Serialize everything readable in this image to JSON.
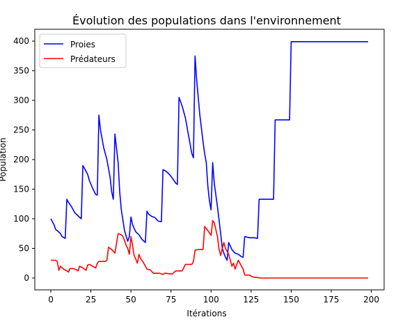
{
  "chart_data": {
    "type": "line",
    "title": "Évolution des populations dans l'environnement",
    "xlabel": "Itérations",
    "ylabel": "Population",
    "xlim": [
      -10,
      208
    ],
    "ylim": [
      -20,
      420
    ],
    "xticks": [
      0,
      25,
      50,
      75,
      100,
      125,
      150,
      175,
      200
    ],
    "yticks": [
      0,
      50,
      100,
      150,
      200,
      250,
      300,
      350,
      400
    ],
    "grid": false,
    "legend_position": "top-left",
    "series": [
      {
        "name": "Proies",
        "color": "#0000ff",
        "x": [
          0,
          2,
          3,
          4,
          6,
          7,
          9,
          10,
          11,
          12,
          13,
          15,
          17,
          19,
          20,
          22,
          23,
          24,
          26,
          28,
          29,
          30,
          31,
          33,
          35,
          37,
          38,
          39,
          40,
          42,
          43,
          44,
          46,
          48,
          49,
          50,
          51,
          53,
          55,
          57,
          59,
          60,
          61,
          63,
          65,
          67,
          69,
          70,
          72,
          74,
          76,
          78,
          79,
          80,
          82,
          84,
          86,
          88,
          89,
          90,
          91,
          93,
          95,
          96,
          97,
          98,
          99,
          100,
          101,
          102,
          104,
          106,
          107,
          108,
          109,
          110,
          111,
          113,
          115,
          117,
          118,
          119,
          120,
          121,
          124,
          127,
          129,
          130,
          132,
          134,
          136,
          138,
          139,
          140,
          142,
          144,
          146,
          148,
          149,
          150,
          155,
          160,
          165,
          170,
          175,
          180,
          185,
          190,
          195,
          198
        ],
        "y": [
          100,
          90,
          82,
          80,
          75,
          70,
          67,
          133,
          128,
          124,
          120,
          110,
          105,
          100,
          190,
          180,
          175,
          165,
          152,
          141,
          140,
          275,
          250,
          220,
          200,
          170,
          145,
          133,
          243,
          195,
          145,
          115,
          80,
          62,
          70,
          103,
          90,
          78,
          73,
          65,
          60,
          113,
          108,
          104,
          102,
          96,
          95,
          183,
          180,
          175,
          168,
          160,
          158,
          305,
          290,
          270,
          240,
          210,
          203,
          375,
          335,
          275,
          230,
          210,
          195,
          155,
          130,
          115,
          195,
          160,
          120,
          75,
          50,
          42,
          35,
          30,
          60,
          48,
          42,
          40,
          38,
          36,
          35,
          70,
          68,
          68,
          67,
          133,
          133,
          133,
          133,
          133,
          133,
          267,
          267,
          267,
          267,
          267,
          267,
          399,
          399,
          399,
          399,
          399,
          399,
          399,
          399,
          399,
          399,
          399
        ]
      },
      {
        "name": "Prédateurs",
        "color": "#ff0000",
        "x": [
          0,
          2,
          3,
          4,
          5,
          6,
          8,
          10,
          11,
          12,
          14,
          16,
          17,
          18,
          20,
          21,
          22,
          23,
          24,
          26,
          28,
          29,
          30,
          32,
          34,
          35,
          36,
          38,
          39,
          40,
          42,
          44,
          45,
          46,
          47,
          48,
          49,
          50,
          51,
          52,
          53,
          54,
          55,
          56,
          58,
          59,
          60,
          62,
          64,
          65,
          68,
          70,
          71,
          72,
          74,
          76,
          77,
          78,
          79,
          80,
          82,
          84,
          86,
          87,
          88,
          89,
          90,
          92,
          94,
          95,
          96,
          98,
          100,
          101,
          102,
          104,
          105,
          106,
          107,
          108,
          109,
          110,
          111,
          112,
          113,
          114,
          115,
          117,
          118,
          119,
          120,
          121,
          122,
          123,
          124,
          125,
          126,
          127,
          128,
          129,
          130,
          135,
          140,
          150,
          160,
          170,
          180,
          190,
          198
        ],
        "y": [
          30,
          30,
          30,
          28,
          13,
          20,
          15,
          12,
          10,
          16,
          16,
          14,
          12,
          20,
          17,
          15,
          13,
          22,
          23,
          20,
          17,
          25,
          28,
          28,
          28,
          30,
          52,
          48,
          45,
          42,
          75,
          73,
          70,
          63,
          55,
          50,
          40,
          70,
          55,
          38,
          32,
          25,
          40,
          33,
          25,
          20,
          15,
          14,
          8,
          8,
          8,
          6,
          8,
          8,
          7,
          7,
          10,
          12,
          12,
          12,
          12,
          23,
          23,
          23,
          23,
          28,
          47,
          48,
          48,
          48,
          87,
          80,
          72,
          97,
          93,
          70,
          48,
          38,
          50,
          60,
          50,
          45,
          40,
          30,
          20,
          25,
          15,
          30,
          25,
          20,
          15,
          5,
          5,
          5,
          5,
          3,
          2,
          1,
          1,
          1,
          0,
          0,
          0,
          0,
          0,
          0,
          0,
          0,
          0
        ]
      }
    ]
  }
}
